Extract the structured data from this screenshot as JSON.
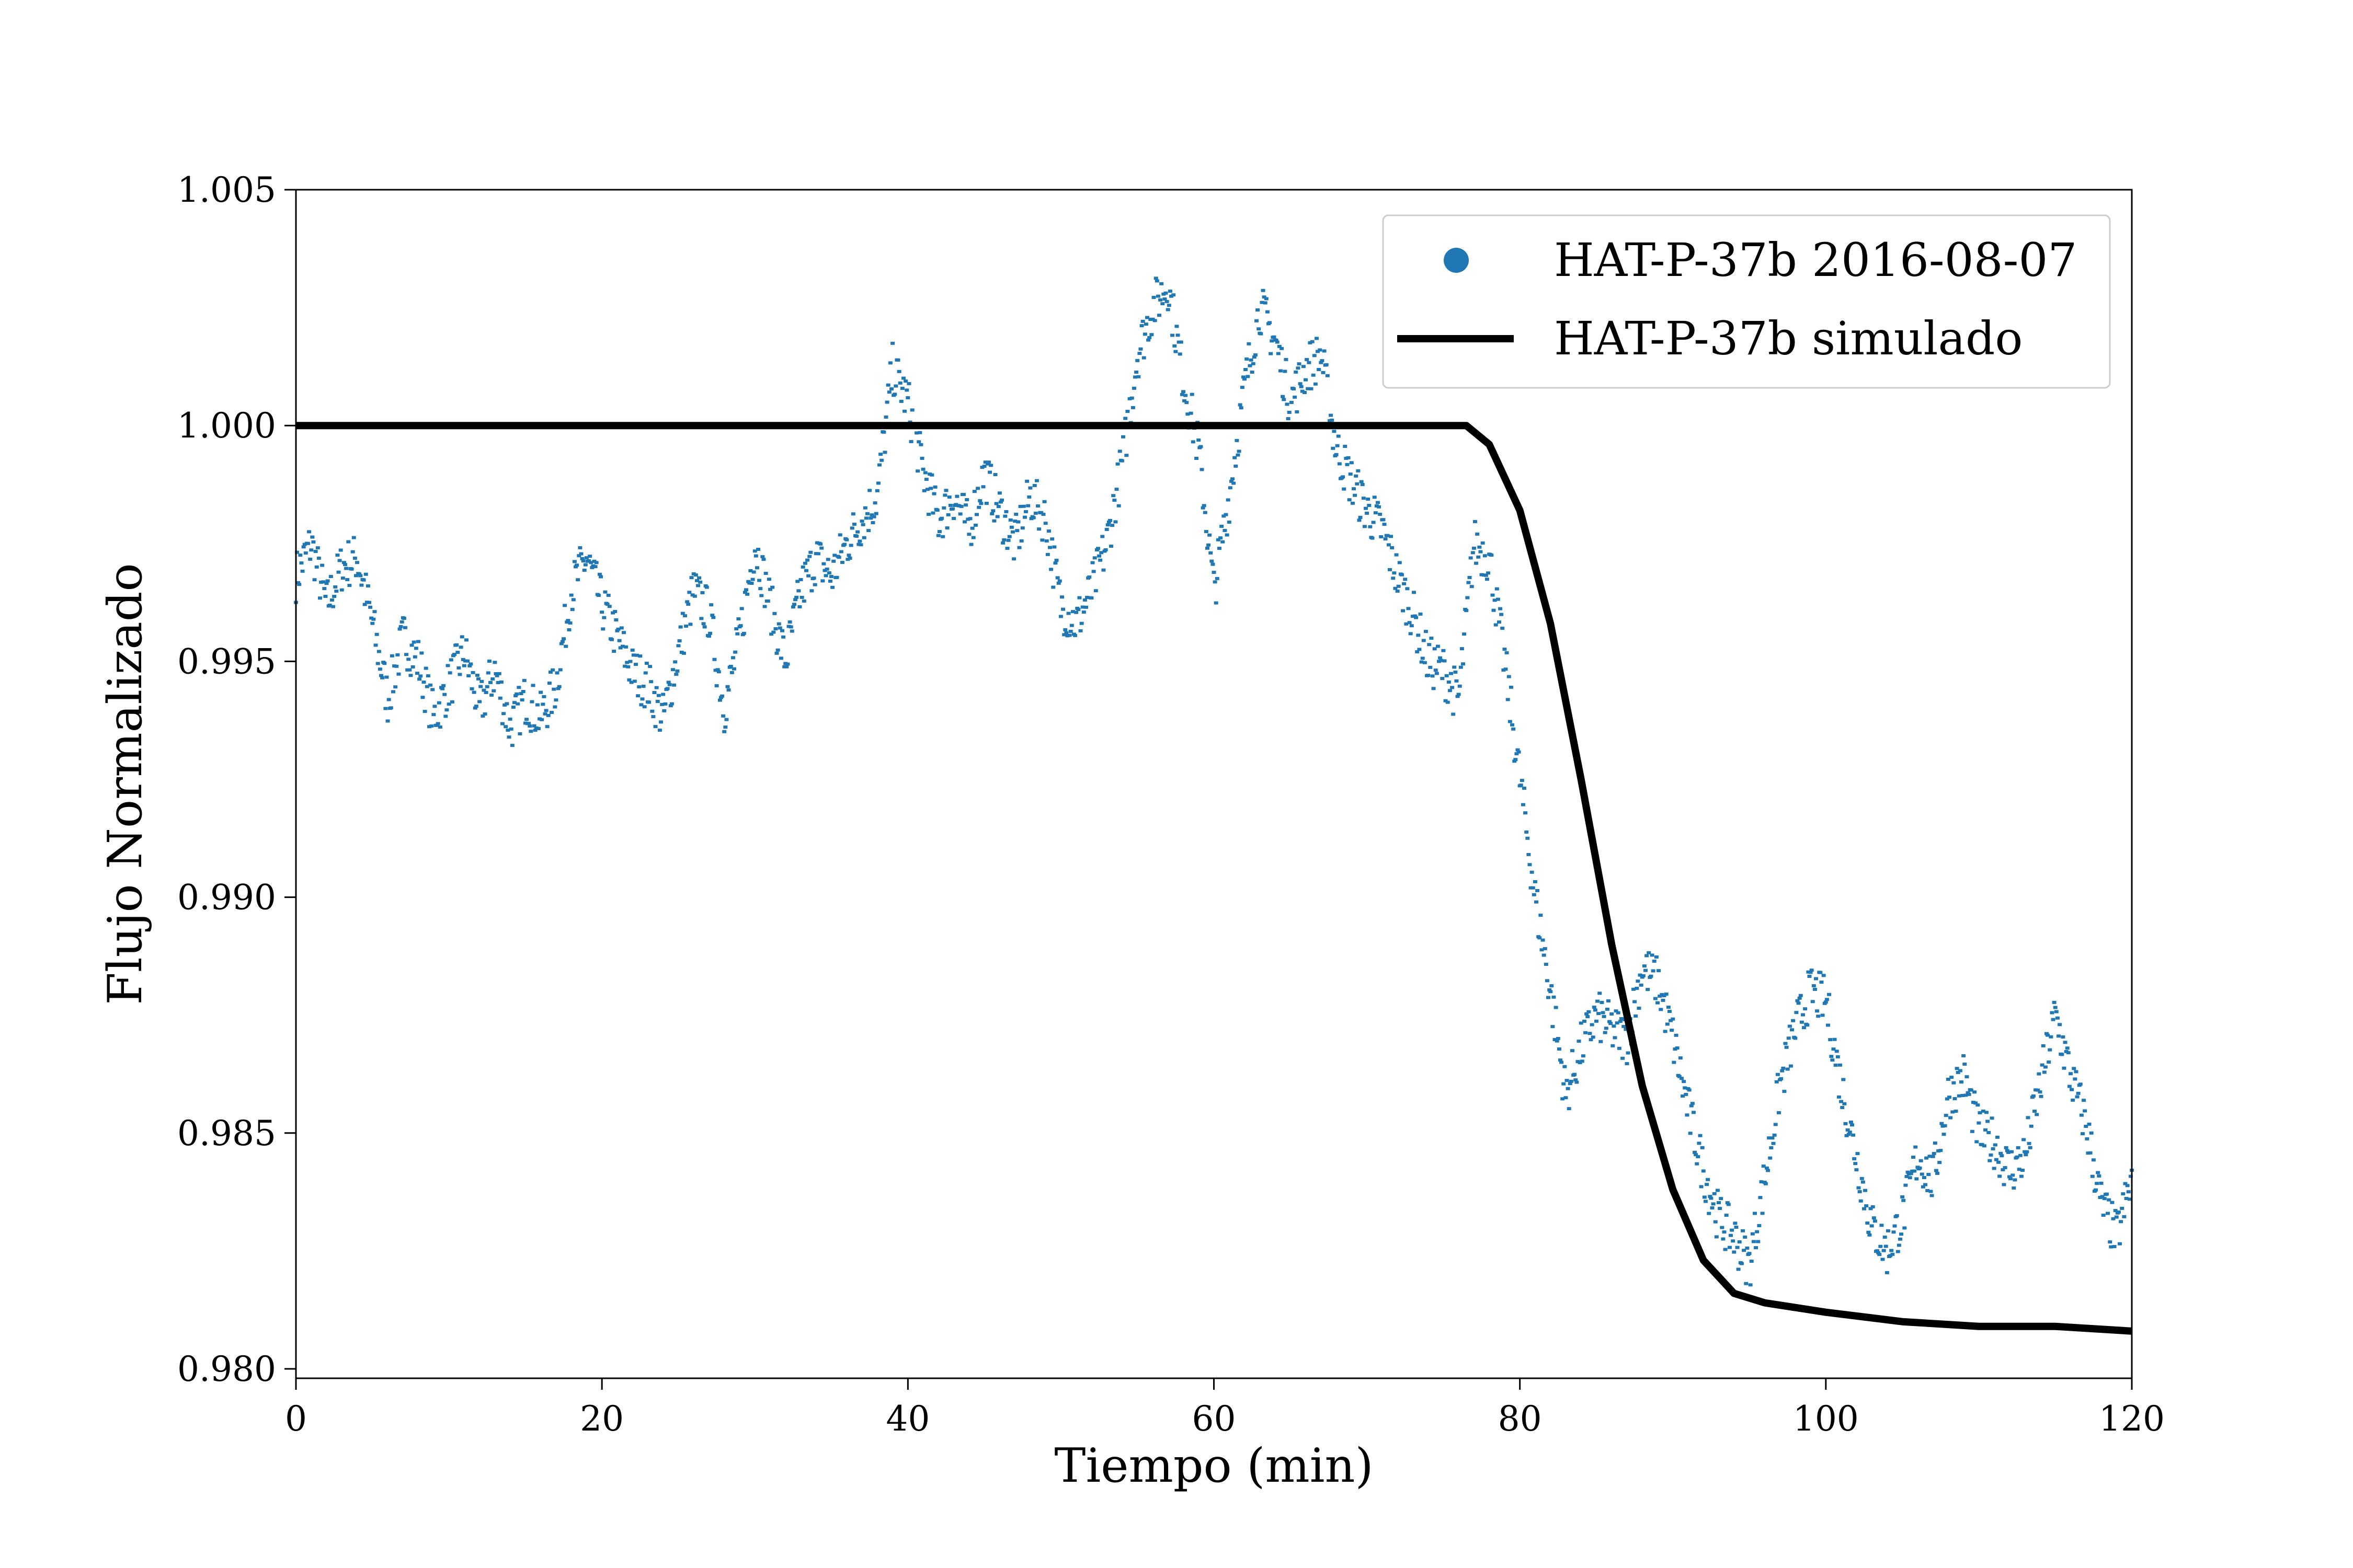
{
  "chart_data": {
    "type": "scatter",
    "xlabel": "Tiempo (min)",
    "ylabel": "Flujo Normalizado",
    "xlim": [
      0,
      120
    ],
    "ylim": [
      0.9798,
      1.005
    ],
    "xticks": [
      0,
      20,
      40,
      60,
      80,
      100,
      120
    ],
    "xtick_labels": [
      "0",
      "20",
      "40",
      "60",
      "80",
      "100",
      "120"
    ],
    "yticks": [
      0.98,
      0.985,
      0.99,
      0.995,
      1.0,
      1.005
    ],
    "ytick_labels": [
      "0.980",
      "0.985",
      "0.990",
      "0.995",
      "1.000",
      "1.005"
    ],
    "grid": false,
    "legend_position": "top-right",
    "series": [
      {
        "name": "HAT-P-37b 2016-08-07",
        "kind": "scatter",
        "color": "#1f77b4",
        "x": [
          0,
          1,
          2,
          3,
          4,
          5,
          6,
          7,
          8,
          9,
          10,
          11,
          12,
          13,
          14,
          15,
          16,
          17,
          18,
          19,
          20,
          21,
          22,
          23,
          24,
          25,
          26,
          27,
          28,
          29,
          30,
          31,
          32,
          33,
          34,
          35,
          36,
          37,
          38,
          39,
          40,
          41,
          42,
          43,
          44,
          45,
          46,
          47,
          48,
          49,
          50,
          51,
          52,
          53,
          54,
          55,
          56,
          57,
          58,
          59,
          60,
          61,
          62,
          63,
          64,
          65,
          66,
          67,
          68,
          69,
          70,
          71,
          72,
          73,
          74,
          75,
          76,
          77,
          78,
          79,
          80,
          81,
          82,
          83,
          84,
          85,
          86,
          87,
          88,
          89,
          90,
          91,
          92,
          93,
          94,
          95,
          96,
          97,
          98,
          99,
          100,
          101,
          102,
          103,
          104,
          105,
          106,
          107,
          108,
          109,
          110,
          111,
          112,
          113,
          114,
          115,
          116,
          117,
          118,
          119,
          120
        ],
        "y": [
          0.9968,
          0.9975,
          0.9962,
          0.997,
          0.9972,
          0.9958,
          0.9942,
          0.9955,
          0.995,
          0.9938,
          0.9945,
          0.9952,
          0.994,
          0.9948,
          0.9936,
          0.9942,
          0.9938,
          0.9945,
          0.9965,
          0.9972,
          0.9962,
          0.9955,
          0.9948,
          0.9945,
          0.9938,
          0.9952,
          0.9965,
          0.996,
          0.994,
          0.9955,
          0.9975,
          0.9962,
          0.995,
          0.9965,
          0.9972,
          0.9968,
          0.9975,
          0.998,
          0.9985,
          1.0012,
          1.0005,
          0.999,
          0.998,
          0.9985,
          0.9978,
          0.999,
          0.9982,
          0.9975,
          0.9985,
          0.998,
          0.9962,
          0.9958,
          0.9965,
          0.9975,
          0.9992,
          1.0015,
          1.0025,
          1.003,
          1.001,
          0.9995,
          0.9965,
          0.9985,
          1.0008,
          1.0025,
          1.0018,
          1.0005,
          1.0012,
          1.0015,
          0.9995,
          0.9988,
          0.9982,
          0.9978,
          0.9968,
          0.996,
          0.995,
          0.9948,
          0.9942,
          0.9975,
          0.9972,
          0.995,
          0.9925,
          0.99,
          0.988,
          0.9858,
          0.9868,
          0.9875,
          0.9872,
          0.987,
          0.9885,
          0.9882,
          0.987,
          0.9855,
          0.9842,
          0.9832,
          0.9828,
          0.9822,
          0.984,
          0.986,
          0.9872,
          0.988,
          0.9878,
          0.986,
          0.9845,
          0.983,
          0.9825,
          0.9832,
          0.9845,
          0.984,
          0.9858,
          0.9862,
          0.985,
          0.9848,
          0.9842,
          0.9845,
          0.986,
          0.9875,
          0.9862,
          0.9852,
          0.9835,
          0.9828,
          0.984
        ]
      },
      {
        "name": "HAT-P-37b simulado",
        "kind": "line",
        "color": "#000000",
        "x": [
          0,
          76.5,
          78,
          80,
          82,
          84,
          86,
          88,
          90,
          92,
          94,
          96,
          100,
          105,
          110,
          115,
          120
        ],
        "y": [
          1.0,
          1.0,
          0.9996,
          0.9982,
          0.9958,
          0.9925,
          0.989,
          0.986,
          0.9838,
          0.9823,
          0.9816,
          0.9814,
          0.9812,
          0.981,
          0.9809,
          0.9809,
          0.9808
        ]
      }
    ]
  }
}
